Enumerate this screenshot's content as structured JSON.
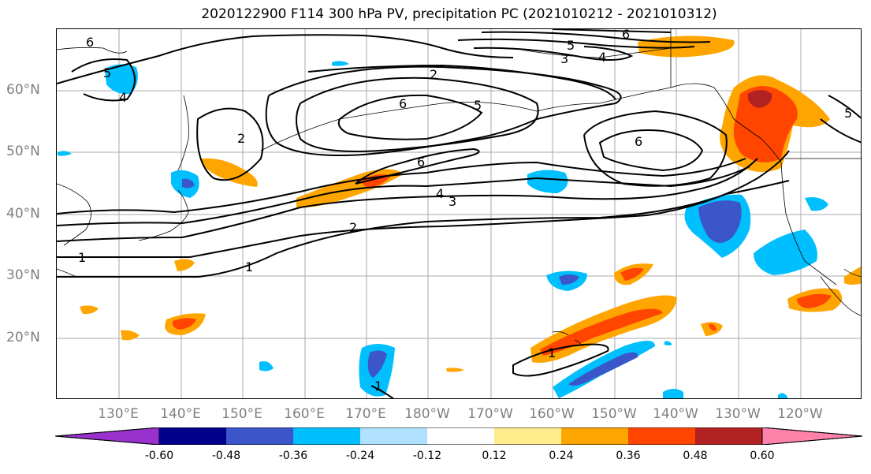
{
  "title": "2020122900 F114 300 hPa PV, precipitation PC (2021010212 - 2021010312)",
  "lat_labels": [
    "60°N",
    "50°N",
    "40°N",
    "30°N",
    "20°N"
  ],
  "lon_labels": [
    "130°E",
    "140°E",
    "150°E",
    "160°E",
    "170°E",
    "180°W",
    "170°W",
    "160°W",
    "150°W",
    "140°W",
    "130°W",
    "120°W"
  ],
  "contour_labels": [
    "1",
    "1",
    "1",
    "1",
    "2",
    "2",
    "2",
    "3",
    "3",
    "4",
    "4",
    "4",
    "5",
    "5",
    "5",
    "6",
    "6",
    "6",
    "6",
    "6",
    "5"
  ],
  "colorbar": {
    "ticks": [
      "-0.60",
      "-0.48",
      "-0.36",
      "-0.24",
      "-0.12",
      "0.12",
      "0.24",
      "0.36",
      "0.48",
      "0.60"
    ],
    "colors": [
      "#9932cc",
      "#00008b",
      "#3a56c9",
      "#00bfff",
      "#b0e2ff",
      "#ffffff",
      "#ffec8b",
      "#ffa500",
      "#ff4500",
      "#b22222",
      "#ff82ab"
    ]
  }
}
